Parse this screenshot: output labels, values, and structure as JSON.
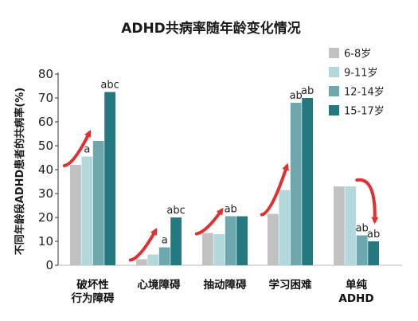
{
  "chart_data": {
    "type": "bar",
    "title": "ADHD共病率随年龄变化情况",
    "ylabel": "不同年龄段ADHD患者的共病率(%)",
    "xlabel": "",
    "ylim": [
      0,
      80
    ],
    "yticks": [
      "0",
      "10",
      "20",
      "30",
      "40",
      "50",
      "60",
      "70",
      "80"
    ],
    "categories": [
      [
        "破坏性",
        "行为障碍"
      ],
      [
        "心境障碍"
      ],
      [
        "抽动障碍"
      ],
      [
        "学习困难"
      ],
      [
        "单纯",
        "ADHD"
      ]
    ],
    "series": [
      {
        "name": "6-8岁",
        "color": "#c2c2c2",
        "values": [
          42,
          2.5,
          13.5,
          21.5,
          33
        ]
      },
      {
        "name": "9-11岁",
        "color": "#b3d8dc",
        "values": [
          45.5,
          4.5,
          13,
          31.5,
          33
        ]
      },
      {
        "name": "12-14岁",
        "color": "#6ca8ad",
        "values": [
          52,
          7.5,
          20.5,
          68,
          12.5
        ]
      },
      {
        "name": "15-17岁",
        "color": "#23797f",
        "values": [
          72.5,
          20,
          20.5,
          70,
          10
        ]
      }
    ],
    "annotations": [
      {
        "category": 0,
        "series": 1,
        "text": "a"
      },
      {
        "category": 0,
        "series": 3,
        "text": "abc"
      },
      {
        "category": 1,
        "series": 2,
        "text": "a"
      },
      {
        "category": 1,
        "series": 3,
        "text": "abc"
      },
      {
        "category": 2,
        "series": 2,
        "text": "ab"
      },
      {
        "category": 3,
        "series": 2,
        "text": "ab"
      },
      {
        "category": 3,
        "series": 3,
        "text": "ab"
      },
      {
        "category": 4,
        "series": 2,
        "text": "ab"
      },
      {
        "category": 4,
        "series": 3,
        "text": "ab"
      }
    ],
    "trend_arrows": [
      "up",
      "up",
      "up",
      "up",
      "down"
    ],
    "arrow_color": "#e03030",
    "grid": false,
    "legend": "top-right"
  }
}
